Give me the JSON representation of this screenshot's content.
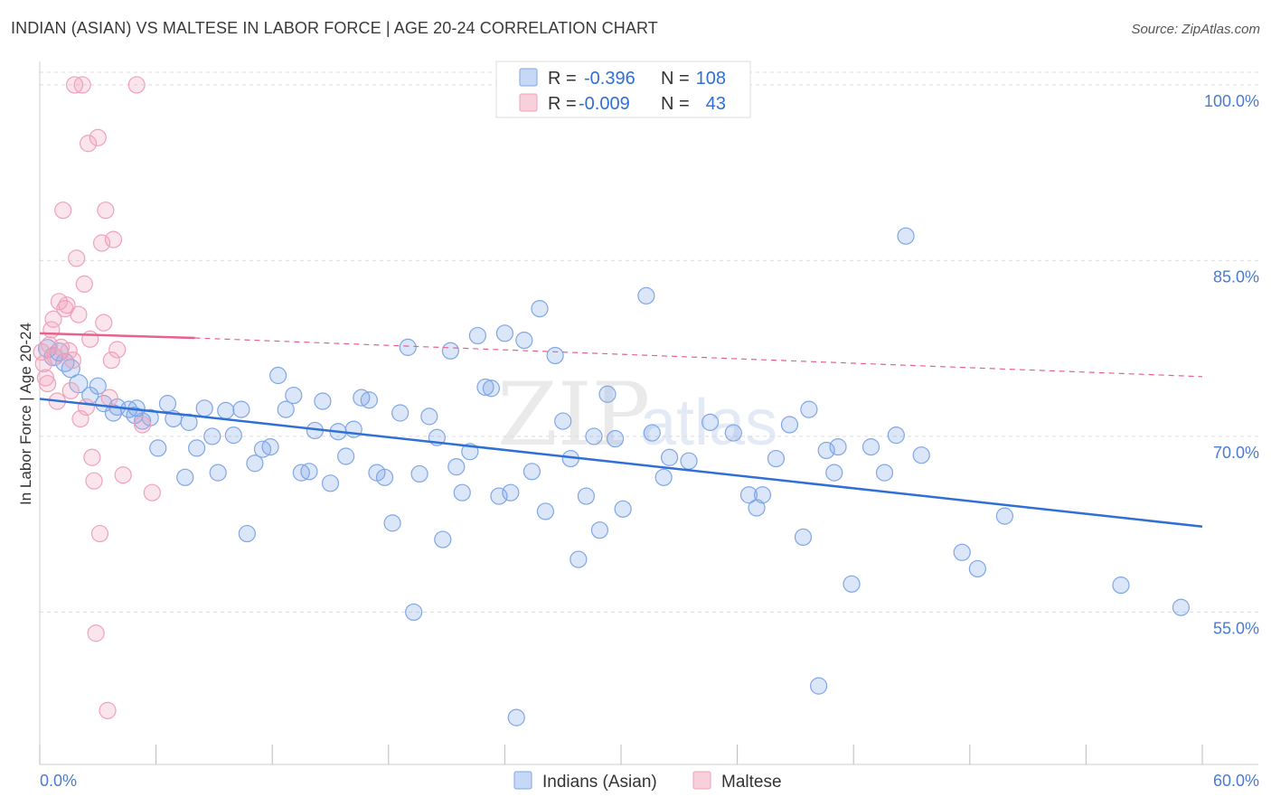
{
  "title": "INDIAN (ASIAN) VS MALTESE IN LABOR FORCE | AGE 20-24 CORRELATION CHART",
  "source": "Source: ZipAtlas.com",
  "watermark": {
    "part1": "ZIP",
    "part2": "atlas"
  },
  "chart_data": {
    "type": "scatter",
    "ylabel": "In Labor Force | Age 20-24",
    "xlim": [
      0,
      60
    ],
    "ylim": [
      42,
      102
    ],
    "x_tick_labels": {
      "min": "0.0%",
      "max": "60.0%"
    },
    "y_ticks": [
      {
        "value": 100,
        "label": "100.0%"
      },
      {
        "value": 85,
        "label": "85.0%"
      },
      {
        "value": 70,
        "label": "70.0%"
      },
      {
        "value": 55,
        "label": "55.0%"
      }
    ],
    "grid": true,
    "legend_placement": "top-center",
    "series": [
      {
        "name": "Indians (Asian)",
        "color": "#7fa6e6",
        "line_color": "#2f6fd6",
        "R_label": "R =",
        "R": "-0.396",
        "N_label": "N =",
        "N": "108",
        "trend": {
          "x": [
            0,
            60
          ],
          "y": [
            73.2,
            62.3
          ]
        },
        "points": [
          [
            0.4,
            77.5
          ],
          [
            0.7,
            76.8
          ],
          [
            1.0,
            77.2
          ],
          [
            1.3,
            76.3
          ],
          [
            1.6,
            75.8
          ],
          [
            2.0,
            74.5
          ],
          [
            2.6,
            73.5
          ],
          [
            3.0,
            74.3
          ],
          [
            3.3,
            72.8
          ],
          [
            3.8,
            72.0
          ],
          [
            4.0,
            72.5
          ],
          [
            4.6,
            72.3
          ],
          [
            4.9,
            71.8
          ],
          [
            5.0,
            72.4
          ],
          [
            5.3,
            71.3
          ],
          [
            5.7,
            71.6
          ],
          [
            6.1,
            69.0
          ],
          [
            6.6,
            72.8
          ],
          [
            6.9,
            71.5
          ],
          [
            7.5,
            66.5
          ],
          [
            7.7,
            71.2
          ],
          [
            8.1,
            69.0
          ],
          [
            8.5,
            72.4
          ],
          [
            8.9,
            70.0
          ],
          [
            9.2,
            66.9
          ],
          [
            9.6,
            72.2
          ],
          [
            10.0,
            70.1
          ],
          [
            10.4,
            72.3
          ],
          [
            10.7,
            61.7
          ],
          [
            11.1,
            67.7
          ],
          [
            11.5,
            68.9
          ],
          [
            11.9,
            69.1
          ],
          [
            12.3,
            75.2
          ],
          [
            12.7,
            72.3
          ],
          [
            13.1,
            73.5
          ],
          [
            13.5,
            66.9
          ],
          [
            13.9,
            67.0
          ],
          [
            14.2,
            70.5
          ],
          [
            14.6,
            73.0
          ],
          [
            15.0,
            66.0
          ],
          [
            15.4,
            70.4
          ],
          [
            15.8,
            68.3
          ],
          [
            16.2,
            70.6
          ],
          [
            16.6,
            73.3
          ],
          [
            17.0,
            73.1
          ],
          [
            17.4,
            66.9
          ],
          [
            17.8,
            66.5
          ],
          [
            18.2,
            62.6
          ],
          [
            18.6,
            72.0
          ],
          [
            19.0,
            77.6
          ],
          [
            19.3,
            55.0
          ],
          [
            19.6,
            66.8
          ],
          [
            20.1,
            71.7
          ],
          [
            20.5,
            69.9
          ],
          [
            20.8,
            61.2
          ],
          [
            21.2,
            77.3
          ],
          [
            21.5,
            67.4
          ],
          [
            21.8,
            65.2
          ],
          [
            22.2,
            68.7
          ],
          [
            22.6,
            78.6
          ],
          [
            23.0,
            74.2
          ],
          [
            23.3,
            74.1
          ],
          [
            23.7,
            64.9
          ],
          [
            24.0,
            78.8
          ],
          [
            24.3,
            65.2
          ],
          [
            24.6,
            46.0
          ],
          [
            25.0,
            78.2
          ],
          [
            25.4,
            67.0
          ],
          [
            25.8,
            80.9
          ],
          [
            26.1,
            63.6
          ],
          [
            26.6,
            76.9
          ],
          [
            27.0,
            71.3
          ],
          [
            27.4,
            68.1
          ],
          [
            27.8,
            59.5
          ],
          [
            28.2,
            64.9
          ],
          [
            28.6,
            70.0
          ],
          [
            28.9,
            62.0
          ],
          [
            29.3,
            73.6
          ],
          [
            29.7,
            69.8
          ],
          [
            30.1,
            63.8
          ],
          [
            31.3,
            82.0
          ],
          [
            31.6,
            70.3
          ],
          [
            32.2,
            66.5
          ],
          [
            32.5,
            68.2
          ],
          [
            33.5,
            67.9
          ],
          [
            34.6,
            71.2
          ],
          [
            35.8,
            70.3
          ],
          [
            36.6,
            65.0
          ],
          [
            37.0,
            63.9
          ],
          [
            37.3,
            65.0
          ],
          [
            38.0,
            68.1
          ],
          [
            38.7,
            71.0
          ],
          [
            39.4,
            61.4
          ],
          [
            39.7,
            72.3
          ],
          [
            40.2,
            48.7
          ],
          [
            40.6,
            68.8
          ],
          [
            41.0,
            66.9
          ],
          [
            41.2,
            69.1
          ],
          [
            41.9,
            57.4
          ],
          [
            42.9,
            69.1
          ],
          [
            43.6,
            66.9
          ],
          [
            44.2,
            70.1
          ],
          [
            44.7,
            87.1
          ],
          [
            45.5,
            68.4
          ],
          [
            47.6,
            60.1
          ],
          [
            48.4,
            58.7
          ],
          [
            49.8,
            63.2
          ],
          [
            55.8,
            57.3
          ],
          [
            58.9,
            55.4
          ]
        ]
      },
      {
        "name": "Maltese",
        "color": "#f0a1ba",
        "line_color": "#e8618d",
        "R_label": "R =",
        "R": "-0.009",
        "N_label": "N =",
        "N": "43",
        "trend": {
          "x": [
            0,
            8,
            60
          ],
          "y": [
            78.8,
            78.4,
            75.1
          ],
          "solid_until": 8
        },
        "points": [
          [
            0.1,
            77.2
          ],
          [
            0.2,
            76.2
          ],
          [
            0.3,
            75.0
          ],
          [
            0.4,
            74.5
          ],
          [
            0.5,
            77.8
          ],
          [
            0.6,
            79.1
          ],
          [
            0.7,
            80.0
          ],
          [
            0.8,
            76.8
          ],
          [
            0.9,
            73.0
          ],
          [
            1.0,
            81.5
          ],
          [
            1.1,
            77.6
          ],
          [
            1.2,
            89.3
          ],
          [
            1.3,
            80.9
          ],
          [
            1.4,
            81.2
          ],
          [
            1.5,
            77.3
          ],
          [
            1.6,
            73.9
          ],
          [
            1.7,
            76.5
          ],
          [
            1.8,
            100.0
          ],
          [
            1.9,
            85.2
          ],
          [
            2.0,
            80.4
          ],
          [
            2.1,
            71.5
          ],
          [
            2.2,
            100.0
          ],
          [
            2.3,
            83.0
          ],
          [
            2.4,
            72.5
          ],
          [
            2.5,
            95.0
          ],
          [
            2.6,
            78.3
          ],
          [
            2.7,
            68.2
          ],
          [
            2.8,
            66.2
          ],
          [
            2.9,
            53.2
          ],
          [
            3.0,
            95.5
          ],
          [
            3.1,
            61.7
          ],
          [
            3.2,
            86.5
          ],
          [
            3.3,
            79.7
          ],
          [
            3.4,
            89.3
          ],
          [
            3.5,
            46.6
          ],
          [
            3.6,
            73.3
          ],
          [
            3.7,
            76.5
          ],
          [
            3.8,
            86.8
          ],
          [
            4.0,
            77.4
          ],
          [
            4.3,
            66.7
          ],
          [
            5.0,
            100.0
          ],
          [
            5.3,
            71.0
          ],
          [
            5.8,
            65.2
          ]
        ]
      }
    ]
  }
}
